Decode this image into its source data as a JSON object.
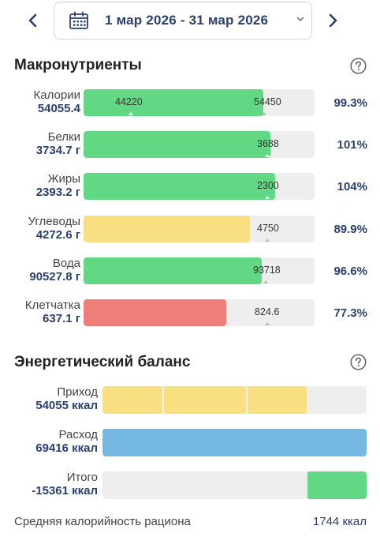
{
  "date_range": {
    "label": "1 мар 2026 - 31 мар 2026"
  },
  "macros": {
    "title": "Макронутриенты",
    "items": [
      {
        "name": "Калории",
        "value": "54055.4",
        "target": "54450",
        "marker": "44220",
        "percent": "99.3%",
        "fill": 0.78,
        "color": "#62d884"
      },
      {
        "name": "Белки",
        "value": "3734.7 г",
        "target": "3688",
        "percent": "101%",
        "fill": 0.81,
        "color": "#62d884"
      },
      {
        "name": "Жиры",
        "value": "2393.2 г",
        "target": "2300",
        "percent": "104%",
        "fill": 0.83,
        "color": "#62d884"
      },
      {
        "name": "Углеводы",
        "value": "4272.6 г",
        "target": "4750",
        "percent": "89.9%",
        "fill": 0.72,
        "color": "#f7df82"
      },
      {
        "name": "Вода",
        "value": "90527.8 г",
        "target": "93718",
        "percent": "96.6%",
        "fill": 0.77,
        "color": "#62d884"
      },
      {
        "name": "Клетчатка",
        "value": "637.1 г",
        "target": "824.6",
        "percent": "77.3%",
        "fill": 0.62,
        "color": "#ef7d78"
      }
    ]
  },
  "energy": {
    "title": "Энергетический баланс",
    "items": [
      {
        "name": "Приход",
        "value": "54055 ккал"
      },
      {
        "name": "Расход",
        "value": "69416 ккал"
      },
      {
        "name": "Итого",
        "value": "-15361 ккал"
      }
    ],
    "income_fraction": 0.779,
    "balance_fraction": 0.221,
    "income_color": "#f7df82",
    "expense_color": "#75b8e4",
    "balance_color": "#62d884"
  },
  "footer": {
    "label": "Средняя калорийность рациона",
    "value": "1744 ккал"
  }
}
